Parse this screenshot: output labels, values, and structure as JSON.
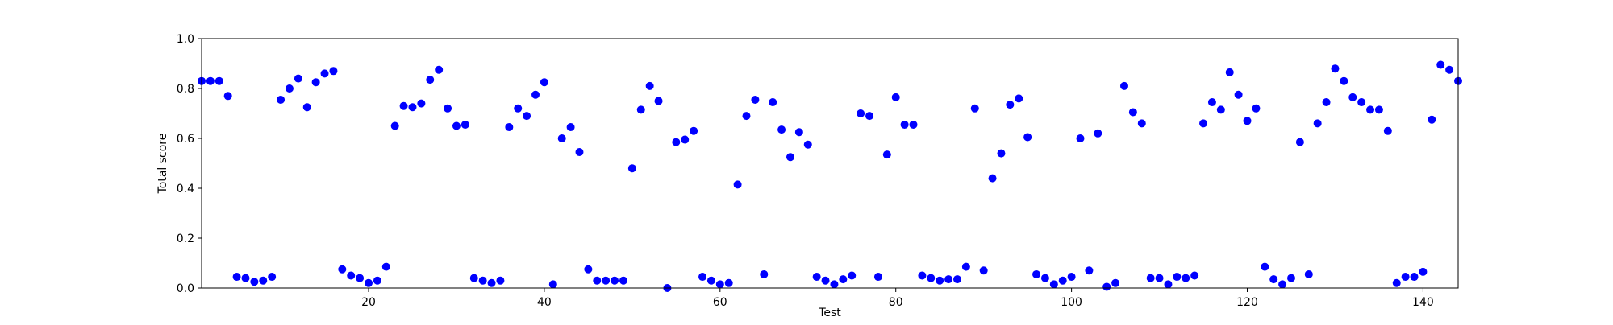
{
  "chart_data": {
    "type": "scatter",
    "title": "",
    "xlabel": "Test",
    "ylabel": "Total score",
    "xlim": [
      1,
      144
    ],
    "ylim": [
      0.0,
      1.0
    ],
    "x_ticks": [
      20,
      40,
      60,
      80,
      100,
      120,
      140
    ],
    "y_ticks": [
      0.0,
      0.2,
      0.4,
      0.6,
      0.8,
      1.0
    ],
    "y_tick_labels": [
      "0.0",
      "0.2",
      "0.4",
      "0.6",
      "0.8",
      "1.0"
    ],
    "grid": false,
    "marker_color": "#0000ff",
    "x": [
      1,
      2,
      3,
      4,
      5,
      6,
      7,
      8,
      9,
      10,
      11,
      12,
      13,
      14,
      15,
      16,
      17,
      18,
      19,
      20,
      21,
      22,
      23,
      24,
      25,
      26,
      27,
      28,
      29,
      30,
      31,
      32,
      33,
      34,
      35,
      36,
      37,
      38,
      39,
      40,
      41,
      42,
      43,
      44,
      45,
      46,
      47,
      48,
      49,
      50,
      51,
      52,
      53,
      54,
      55,
      56,
      57,
      58,
      59,
      60,
      61,
      62,
      63,
      64,
      65,
      66,
      67,
      68,
      69,
      70,
      71,
      72,
      73,
      74,
      75,
      76,
      77,
      78,
      79,
      80,
      81,
      82,
      83,
      84,
      85,
      86,
      87,
      88,
      89,
      90,
      91,
      92,
      93,
      94,
      95,
      96,
      97,
      98,
      99,
      100,
      101,
      102,
      103,
      104,
      105,
      106,
      107,
      108,
      109,
      110,
      111,
      112,
      113,
      114,
      115,
      116,
      117,
      118,
      119,
      120,
      121,
      122,
      123,
      124,
      125,
      126,
      127,
      128,
      129,
      130,
      131,
      132,
      133,
      134,
      135,
      136,
      137,
      138,
      139,
      140,
      141,
      142,
      143,
      144
    ],
    "y": [
      0.83,
      0.83,
      0.83,
      0.77,
      0.045,
      0.04,
      0.025,
      0.03,
      0.045,
      0.755,
      0.8,
      0.84,
      0.725,
      0.825,
      0.86,
      0.87,
      0.075,
      0.05,
      0.04,
      0.02,
      0.03,
      0.085,
      0.65,
      0.73,
      0.725,
      0.74,
      0.835,
      0.875,
      0.72,
      0.65,
      0.655,
      0.04,
      0.03,
      0.02,
      0.03,
      0.645,
      0.72,
      0.69,
      0.775,
      0.825,
      0.015,
      0.6,
      0.645,
      0.545,
      0.075,
      0.03,
      0.03,
      0.03,
      0.03,
      0.48,
      0.715,
      0.81,
      0.75,
      0.0,
      0.585,
      0.595,
      0.63,
      0.045,
      0.03,
      0.015,
      0.02,
      0.415,
      0.69,
      0.755,
      0.055,
      0.745,
      0.635,
      0.525,
      0.625,
      0.575,
      0.045,
      0.03,
      0.015,
      0.035,
      0.05,
      0.7,
      0.69,
      0.045,
      0.535,
      0.765,
      0.655,
      0.655,
      0.05,
      0.04,
      0.03,
      0.035,
      0.035,
      0.085,
      0.72,
      0.07,
      0.44,
      0.54,
      0.735,
      0.76,
      0.605,
      0.055,
      0.04,
      0.015,
      0.03,
      0.045,
      0.6,
      0.07,
      0.62,
      0.005,
      0.02,
      0.81,
      0.705,
      0.66,
      0.04,
      0.04,
      0.015,
      0.045,
      0.04,
      0.05,
      0.66,
      0.745,
      0.715,
      0.865,
      0.775,
      0.67,
      0.72,
      0.085,
      0.035,
      0.015,
      0.04,
      0.585,
      0.055,
      0.66,
      0.745,
      0.88,
      0.83,
      0.765,
      0.745,
      0.715,
      0.715,
      0.63,
      0.02,
      0.045,
      0.045,
      0.065,
      0.675,
      0.895,
      0.875,
      0.83
    ]
  }
}
